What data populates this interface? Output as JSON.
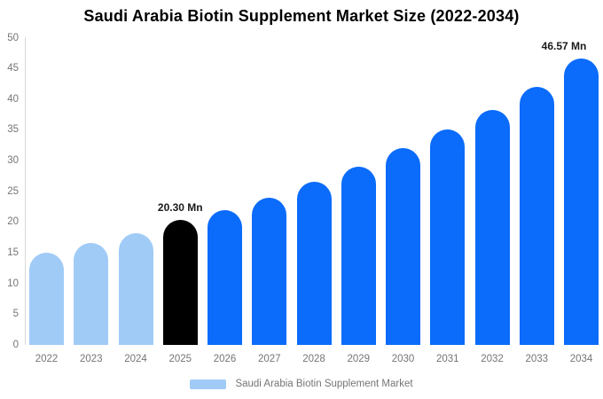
{
  "chart_data": {
    "type": "bar",
    "title": "Saudi Arabia Biotin Supplement Market Size (2022-2034)",
    "xlabel": "",
    "ylabel": "",
    "unit": "Mn",
    "ylim": [
      0,
      50
    ],
    "y_ticks": [
      0,
      5,
      10,
      15,
      20,
      25,
      30,
      35,
      40,
      45,
      50
    ],
    "grid": "off",
    "categories": [
      "2022",
      "2023",
      "2024",
      "2025",
      "2026",
      "2027",
      "2028",
      "2029",
      "2030",
      "2031",
      "2032",
      "2033",
      "2034"
    ],
    "values": [
      15.0,
      16.6,
      18.2,
      20.3,
      21.9,
      24.0,
      26.5,
      29.0,
      32.0,
      35.0,
      38.3,
      42.0,
      46.57
    ],
    "bars": [
      {
        "year": "2022",
        "value": 15.0,
        "color": "#A0CBF7"
      },
      {
        "year": "2023",
        "value": 16.6,
        "color": "#A0CBF7"
      },
      {
        "year": "2024",
        "value": 18.2,
        "color": "#A0CBF7"
      },
      {
        "year": "2025",
        "value": 20.3,
        "color": "#000000",
        "label": "20.30 Mn"
      },
      {
        "year": "2026",
        "value": 21.9,
        "color": "#0B6BFA"
      },
      {
        "year": "2027",
        "value": 24.0,
        "color": "#0B6BFA"
      },
      {
        "year": "2028",
        "value": 26.5,
        "color": "#0B6BFA"
      },
      {
        "year": "2029",
        "value": 29.0,
        "color": "#0B6BFA"
      },
      {
        "year": "2030",
        "value": 32.0,
        "color": "#0B6BFA"
      },
      {
        "year": "2031",
        "value": 35.0,
        "color": "#0B6BFA"
      },
      {
        "year": "2032",
        "value": 38.3,
        "color": "#0B6BFA"
      },
      {
        "year": "2033",
        "value": 42.0,
        "color": "#0B6BFA"
      },
      {
        "year": "2034",
        "value": 46.57,
        "color": "#0B6BFA",
        "label": "46.57 Mn"
      }
    ],
    "annotations": [
      "20.30 Mn",
      "46.57 Mn"
    ],
    "legend": {
      "position": "bottom",
      "label": "Saudi Arabia Biotin Supplement Market",
      "color": "#A0CBF7"
    },
    "colors": {
      "historical_bar": "#A0CBF7",
      "highlight_bar": "#000000",
      "forecast_bar": "#0B6BFA",
      "axis_line": "#d9d9d9",
      "tick_text": "#757575",
      "title_text": "#000000"
    }
  }
}
